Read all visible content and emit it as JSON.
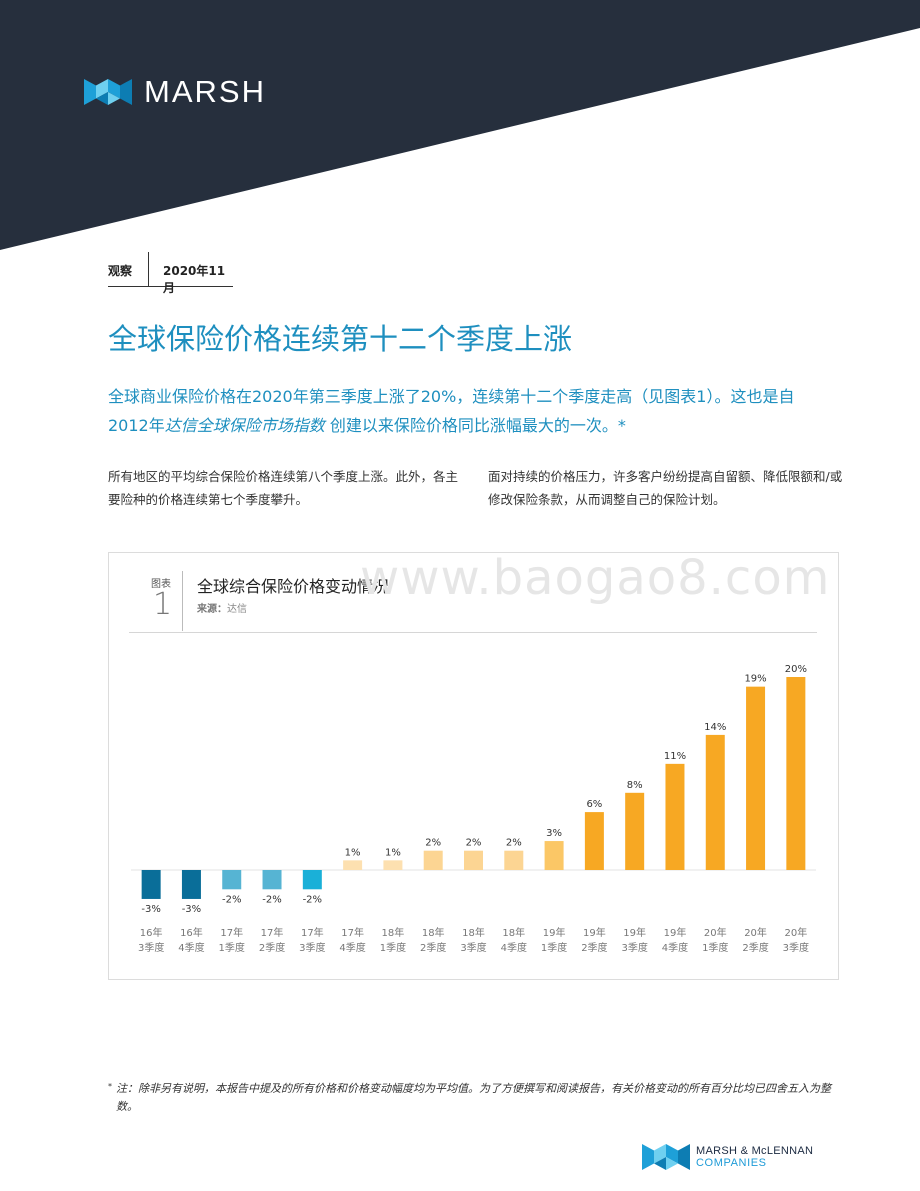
{
  "brand": {
    "name": "MARSH",
    "header_color": "#262f3d",
    "accent": "#1e8fbf"
  },
  "meta": {
    "category": "观察",
    "date": "2020年11月"
  },
  "title": "全球保险价格连续第十二个季度上涨",
  "lead": {
    "part1": "全球商业保险价格在2020年第三季度上涨了20%，连续第十二个季度走高（见图表1）。这也是自2012年",
    "emphasis": "达信全球保险市场指数",
    "part2": "创建以来保险价格同比涨幅最大的一次。*"
  },
  "columns": {
    "left": "所有地区的平均综合保险价格连续第八个季度上涨。此外，各主要险种的价格连续第七个季度攀升。",
    "right": "面对持续的价格压力，许多客户纷纷提高自留额、降低限额和/或修改保险条款，从而调整自己的保险计划。"
  },
  "figure": {
    "label": "图表",
    "number": "1",
    "title": "全球综合保险价格变动情况",
    "source_label": "来源：",
    "source": "达信"
  },
  "watermark": "www.baogao8.com",
  "chart_data": {
    "type": "bar",
    "title": "全球综合保险价格变动情况",
    "categories": [
      [
        "16年",
        "3季度"
      ],
      [
        "16年",
        "4季度"
      ],
      [
        "17年",
        "1季度"
      ],
      [
        "17年",
        "2季度"
      ],
      [
        "17年",
        "3季度"
      ],
      [
        "17年",
        "4季度"
      ],
      [
        "18年",
        "1季度"
      ],
      [
        "18年",
        "2季度"
      ],
      [
        "18年",
        "3季度"
      ],
      [
        "18年",
        "4季度"
      ],
      [
        "19年",
        "1季度"
      ],
      [
        "19年",
        "2季度"
      ],
      [
        "19年",
        "3季度"
      ],
      [
        "19年",
        "4季度"
      ],
      [
        "20年",
        "1季度"
      ],
      [
        "20年",
        "2季度"
      ],
      [
        "20年",
        "3季度"
      ]
    ],
    "values": [
      -3,
      -3,
      -2,
      -2,
      -2,
      1,
      1,
      2,
      2,
      2,
      3,
      6,
      8,
      11,
      14,
      19,
      20
    ],
    "value_labels": [
      "-3%",
      "-3%",
      "-2%",
      "-2%",
      "-2%",
      "1%",
      "1%",
      "2%",
      "2%",
      "2%",
      "3%",
      "6%",
      "8%",
      "11%",
      "14%",
      "19%",
      "20%"
    ],
    "colors": [
      "#0a6e99",
      "#0a6e99",
      "#56b4d3",
      "#56b4d3",
      "#1ab0d8",
      "#fde0b0",
      "#fde0b0",
      "#fcd593",
      "#fcd593",
      "#fcd593",
      "#fbc766",
      "#f7a823",
      "#f7a823",
      "#f7a823",
      "#f7a823",
      "#f7a823",
      "#f7a823"
    ],
    "ylim": [
      -3.5,
      21
    ],
    "grid": false,
    "legend": "none"
  },
  "footnote": {
    "mark": "*",
    "text": "注：除非另有说明，本报告中提及的所有价格和价格变动幅度均为平均值。为了方便撰写和阅读报告，有关价格变动的所有百分比均已四舍五入为整数。"
  },
  "footer_brand": {
    "line1": "MARSH & McLENNAN",
    "line2": "COMPANIES"
  }
}
